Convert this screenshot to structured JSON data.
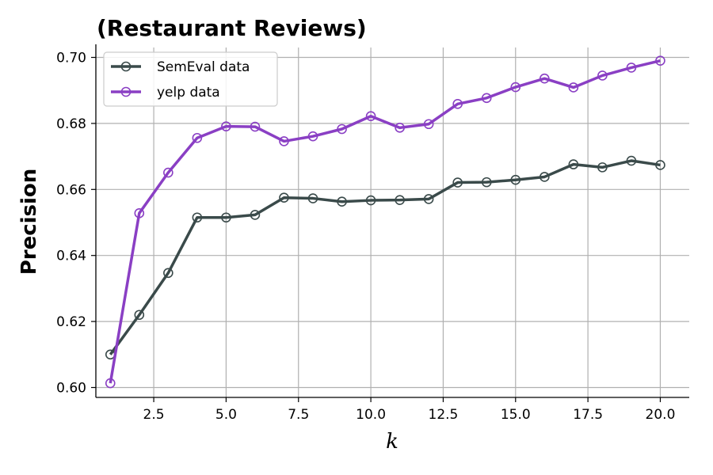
{
  "chart_data": {
    "type": "line",
    "title": "(Restaurant Reviews)",
    "xlabel": "k",
    "ylabel": "Precision",
    "xlim": [
      0.5,
      21
    ],
    "ylim": [
      0.597,
      0.703
    ],
    "xticks": [
      2.5,
      5.0,
      7.5,
      10.0,
      12.5,
      15.0,
      17.5,
      20.0
    ],
    "xtick_labels": [
      "2.5",
      "5.0",
      "7.5",
      "10.0",
      "12.5",
      "15.0",
      "17.5",
      "20.0"
    ],
    "yticks": [
      0.6,
      0.62,
      0.64,
      0.66,
      0.68,
      0.7
    ],
    "ytick_labels": [
      "0.60",
      "0.62",
      "0.64",
      "0.66",
      "0.68",
      "0.70"
    ],
    "grid": true,
    "legend_position": "top-left",
    "x": [
      1,
      2,
      3,
      4,
      5,
      6,
      7,
      8,
      9,
      10,
      11,
      12,
      13,
      14,
      15,
      16,
      17,
      18,
      19,
      20
    ],
    "series": [
      {
        "name": "SemEval data",
        "color": "#3a4a4a",
        "values": [
          0.61,
          0.622,
          0.6347,
          0.6515,
          0.6515,
          0.6523,
          0.6575,
          0.6573,
          0.6563,
          0.6567,
          0.6568,
          0.6571,
          0.6621,
          0.6622,
          0.6629,
          0.6638,
          0.6676,
          0.6667,
          0.6687,
          0.6674
        ]
      },
      {
        "name": "yelp data",
        "color": "#8a3fc4",
        "values": [
          0.6013,
          0.6528,
          0.6651,
          0.6756,
          0.6791,
          0.679,
          0.6746,
          0.6761,
          0.6783,
          0.6822,
          0.6787,
          0.6798,
          0.6859,
          0.6877,
          0.691,
          0.6936,
          0.6909,
          0.6945,
          0.6969,
          0.699
        ]
      }
    ]
  }
}
